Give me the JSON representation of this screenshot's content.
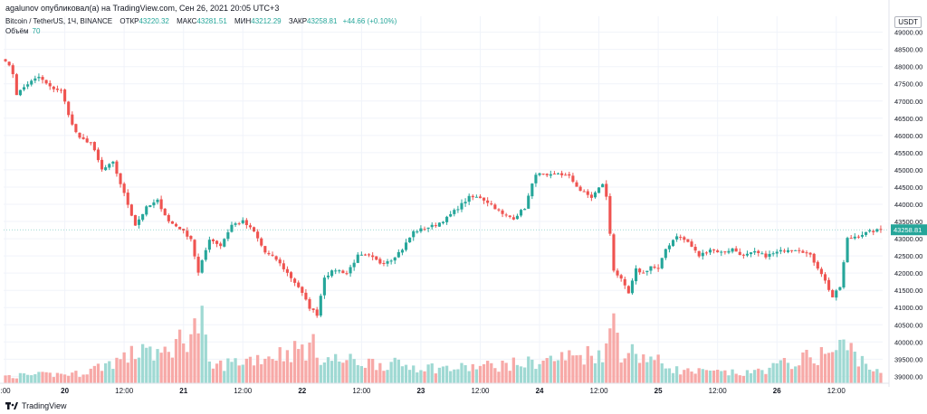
{
  "header": {
    "caption": "agalunov опубликовал(а) на TradingView.com, Сен 26, 2021 20:05 UTC+3",
    "symbol": "Bitcoin / TetherUS, 1Ч, BINANCE",
    "open_label": "ОТКР",
    "open_value": "43220.32",
    "high_label": "МАКС",
    "high_value": "43281.51",
    "low_label": "МИН",
    "low_value": "43212.29",
    "close_label": "ЗАКР",
    "close_value": "43258.81",
    "change": "+44.66 (+0.10%)",
    "volume_label": "Объём",
    "volume_value": "70",
    "currency": "USDT",
    "last_price": "43258.81"
  },
  "footer": {
    "brand": "TradingView"
  },
  "colors": {
    "up": "#26a69a",
    "down": "#ef5350",
    "up_vol": "#9fd9d3",
    "down_vol": "#f7a9a7",
    "grid": "#f0f3fa",
    "price_line": "#26a69a"
  },
  "chart_data": {
    "type": "candlestick",
    "x_ticks": [
      ":00",
      "20",
      "12:00",
      "21",
      "12:00",
      "22",
      "12:00",
      "23",
      "12:00",
      "24",
      "12:00",
      "25",
      "12:00",
      "26",
      "12:00"
    ],
    "y_ticks": [
      "49000.00",
      "48500.00",
      "48000.00",
      "47500.00",
      "47000.00",
      "46500.00",
      "46000.00",
      "45500.00",
      "45000.00",
      "44500.00",
      "44000.00",
      "43500.00",
      "43000.00",
      "42500.00",
      "42000.00",
      "41500.00",
      "41000.00",
      "40500.00",
      "40000.00",
      "39500.00",
      "39000.00"
    ],
    "ylim": [
      38800,
      49200
    ],
    "close_anchors": [
      [
        0,
        48200
      ],
      [
        2,
        47800
      ],
      [
        3,
        47200
      ],
      [
        6,
        47500
      ],
      [
        9,
        47700
      ],
      [
        12,
        47400
      ],
      [
        15,
        47300
      ],
      [
        18,
        46300
      ],
      [
        20,
        45900
      ],
      [
        23,
        45800
      ],
      [
        26,
        45000
      ],
      [
        29,
        45200
      ],
      [
        32,
        44300
      ],
      [
        35,
        43400
      ],
      [
        38,
        43900
      ],
      [
        41,
        44100
      ],
      [
        44,
        43500
      ],
      [
        47,
        43300
      ],
      [
        50,
        43000
      ],
      [
        52,
        42000
      ],
      [
        55,
        43000
      ],
      [
        58,
        42800
      ],
      [
        61,
        43400
      ],
      [
        64,
        43500
      ],
      [
        67,
        43200
      ],
      [
        70,
        42600
      ],
      [
        73,
        42400
      ],
      [
        76,
        42000
      ],
      [
        79,
        41600
      ],
      [
        82,
        41000
      ],
      [
        84,
        40800
      ],
      [
        86,
        41900
      ],
      [
        89,
        42100
      ],
      [
        92,
        42000
      ],
      [
        95,
        42500
      ],
      [
        98,
        42500
      ],
      [
        101,
        42300
      ],
      [
        104,
        42400
      ],
      [
        107,
        42700
      ],
      [
        110,
        43200
      ],
      [
        113,
        43300
      ],
      [
        116,
        43400
      ],
      [
        119,
        43600
      ],
      [
        122,
        43900
      ],
      [
        125,
        44200
      ],
      [
        128,
        44200
      ],
      [
        131,
        44000
      ],
      [
        134,
        43700
      ],
      [
        137,
        43600
      ],
      [
        140,
        43900
      ],
      [
        143,
        44900
      ],
      [
        146,
        44800
      ],
      [
        149,
        44900
      ],
      [
        152,
        44800
      ],
      [
        155,
        44400
      ],
      [
        158,
        44200
      ],
      [
        161,
        44600
      ],
      [
        162,
        44200
      ],
      [
        164,
        42100
      ],
      [
        166,
        41800
      ],
      [
        168,
        41400
      ],
      [
        170,
        42100
      ],
      [
        172,
        42000
      ],
      [
        174,
        42200
      ],
      [
        176,
        42100
      ],
      [
        178,
        42700
      ],
      [
        181,
        43100
      ],
      [
        184,
        42900
      ],
      [
        187,
        42500
      ],
      [
        190,
        42700
      ],
      [
        193,
        42600
      ],
      [
        196,
        42700
      ],
      [
        199,
        42500
      ],
      [
        202,
        42600
      ],
      [
        205,
        42500
      ],
      [
        208,
        42600
      ],
      [
        211,
        42700
      ],
      [
        214,
        42700
      ],
      [
        217,
        42500
      ],
      [
        220,
        42000
      ],
      [
        223,
        41300
      ],
      [
        225,
        41600
      ],
      [
        227,
        43000
      ],
      [
        230,
        43100
      ],
      [
        233,
        43200
      ],
      [
        236,
        43258.81
      ]
    ],
    "volume_anchors": [
      [
        0,
        9
      ],
      [
        20,
        12
      ],
      [
        36,
        38
      ],
      [
        38,
        55
      ],
      [
        40,
        28
      ],
      [
        53,
        75
      ],
      [
        55,
        20
      ],
      [
        83,
        45
      ],
      [
        86,
        30
      ],
      [
        108,
        22
      ],
      [
        120,
        18
      ],
      [
        141,
        25
      ],
      [
        162,
        40
      ],
      [
        164,
        85
      ],
      [
        166,
        40
      ],
      [
        170,
        38
      ],
      [
        182,
        15
      ],
      [
        200,
        12
      ],
      [
        224,
        40
      ],
      [
        226,
        48
      ],
      [
        236,
        10
      ]
    ],
    "volume_ylim": [
      0,
      100
    ]
  }
}
